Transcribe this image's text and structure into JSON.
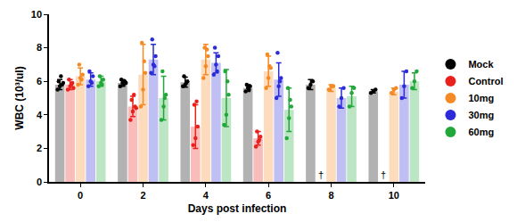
{
  "chart_data": {
    "type": "bar",
    "x_label": "Days post infection",
    "y_label": "WBC (10³/ul)",
    "categories": [
      "0",
      "2",
      "4",
      "6",
      "8",
      "10"
    ],
    "ylim": [
      0,
      10
    ],
    "yticks": [
      0,
      2,
      4,
      6,
      8,
      10
    ],
    "grid": false,
    "legend": "right",
    "marker": "circle",
    "series": [
      {
        "name": "Mock",
        "color": "#000000",
        "values": [
          5.8,
          5.9,
          5.95,
          5.6,
          5.8,
          5.4
        ],
        "errors": [
          0.3,
          0.2,
          0.3,
          0.2,
          0.3,
          0.1
        ],
        "points": [
          [
            5.5,
            5.7,
            5.8,
            6.0,
            6.3,
            5.9
          ],
          [
            5.7,
            5.9,
            6.0,
            6.1,
            5.8,
            5.9
          ],
          [
            5.7,
            5.8,
            6.0,
            6.3,
            5.9
          ],
          [
            5.4,
            5.6,
            5.7,
            5.8,
            5.5
          ],
          [
            5.6,
            5.8,
            6.0
          ],
          [
            5.3,
            5.4,
            5.5
          ]
        ]
      },
      {
        "name": "Control",
        "color": "#e8211d",
        "values": [
          5.8,
          4.5,
          3.3,
          2.6,
          null,
          null
        ],
        "errors": [
          0.3,
          0.6,
          1.3,
          0.4,
          null,
          null
        ],
        "points": [
          [
            5.5,
            5.7,
            5.9,
            6.1,
            5.8,
            5.6
          ],
          [
            3.7,
            4.2,
            4.5,
            4.9,
            5.2,
            4.4
          ],
          [
            2.2,
            2.6,
            3.3,
            4.6,
            4.8
          ],
          [
            2.1,
            2.4,
            2.7,
            3.0,
            2.5
          ],
          [],
          []
        ]
      },
      {
        "name": "10mg",
        "color": "#f58a24",
        "values": [
          6.3,
          6.4,
          7.3,
          6.6,
          5.6,
          5.4
        ],
        "errors": [
          0.5,
          1.8,
          0.9,
          0.9,
          0.2,
          0.2
        ],
        "points": [
          [
            5.8,
            6.2,
            6.4,
            7.0,
            6.1
          ],
          [
            4.5,
            5.5,
            6.5,
            8.3,
            7.2
          ],
          [
            6.2,
            6.9,
            7.5,
            8.0,
            7.9
          ],
          [
            5.6,
            6.2,
            6.8,
            7.6,
            6.9
          ],
          [
            5.5,
            5.7,
            5.7
          ],
          [
            5.3,
            5.5,
            5.6
          ]
        ]
      },
      {
        "name": "30mg",
        "color": "#2b2bd9",
        "values": [
          6.1,
          7.3,
          7.1,
          6.1,
          5.0,
          5.8
        ],
        "errors": [
          0.4,
          0.9,
          0.6,
          1.0,
          0.6,
          0.8
        ],
        "points": [
          [
            5.7,
            6.0,
            6.3,
            6.6,
            5.9
          ],
          [
            6.5,
            7.0,
            7.5,
            8.5,
            6.9
          ],
          [
            6.4,
            7.0,
            7.5,
            8.0,
            6.6
          ],
          [
            5.0,
            5.7,
            6.2,
            7.7,
            6.0
          ],
          [
            4.5,
            5.0,
            5.6
          ],
          [
            5.0,
            5.7,
            6.6
          ]
        ]
      },
      {
        "name": "60mg",
        "color": "#22a83a",
        "values": [
          6.0,
          5.0,
          5.0,
          4.3,
          5.1,
          6.0
        ],
        "errors": [
          0.3,
          1.3,
          1.7,
          1.3,
          0.6,
          0.5
        ],
        "points": [
          [
            5.7,
            5.9,
            6.1,
            6.3,
            5.8
          ],
          [
            3.7,
            4.5,
            5.2,
            6.6,
            5.0
          ],
          [
            3.4,
            4.0,
            5.2,
            6.6,
            6.0
          ],
          [
            2.6,
            3.8,
            4.5,
            5.6,
            4.9
          ],
          [
            4.5,
            5.3,
            5.6
          ],
          [
            5.6,
            6.0,
            6.6
          ]
        ]
      }
    ],
    "annotations": [
      {
        "text": "†",
        "category": "8",
        "series": "Control"
      },
      {
        "text": "†",
        "category": "10",
        "series": "Control"
      }
    ]
  }
}
